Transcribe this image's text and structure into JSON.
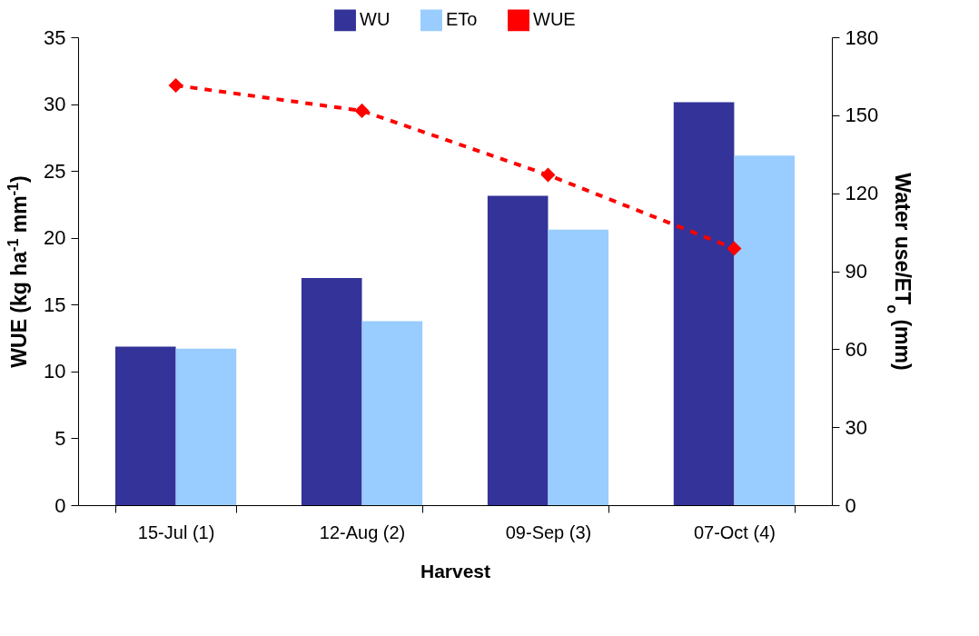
{
  "chart_data": {
    "type": "bar",
    "xlabel": "Harvest",
    "ylabel": "WUE (kg ha$^{-1}$ mm$^{-1}$)",
    "y2label": "Water use/ET$_{o}$ (mm)",
    "categories": [
      "15-Jul (1)",
      "12-Aug (2)",
      "09-Sep (3)",
      "07-Oct (4)"
    ],
    "series": [
      {
        "name": "WU",
        "color": "#333399",
        "axis": "y2",
        "values": [
          61,
          87.4,
          119,
          155
        ]
      },
      {
        "name": "ETo",
        "color": "#99ccff",
        "axis": "y2",
        "values": [
          60.2,
          70.8,
          106,
          134.5
        ]
      },
      {
        "name": "WUE",
        "type": "line",
        "color": "#ff0000",
        "values": [
          31.4,
          29.5,
          24.7,
          19.2
        ]
      }
    ],
    "ylim": [
      0,
      35
    ],
    "yticks": [
      0,
      5,
      10,
      15,
      20,
      25,
      30,
      35
    ],
    "y2lim": [
      0,
      180
    ],
    "y2ticks": [
      0,
      30,
      60,
      90,
      120,
      150,
      180
    ],
    "grid": false,
    "legend": "top",
    "marker": "diamond",
    "line_style": "dashed"
  }
}
